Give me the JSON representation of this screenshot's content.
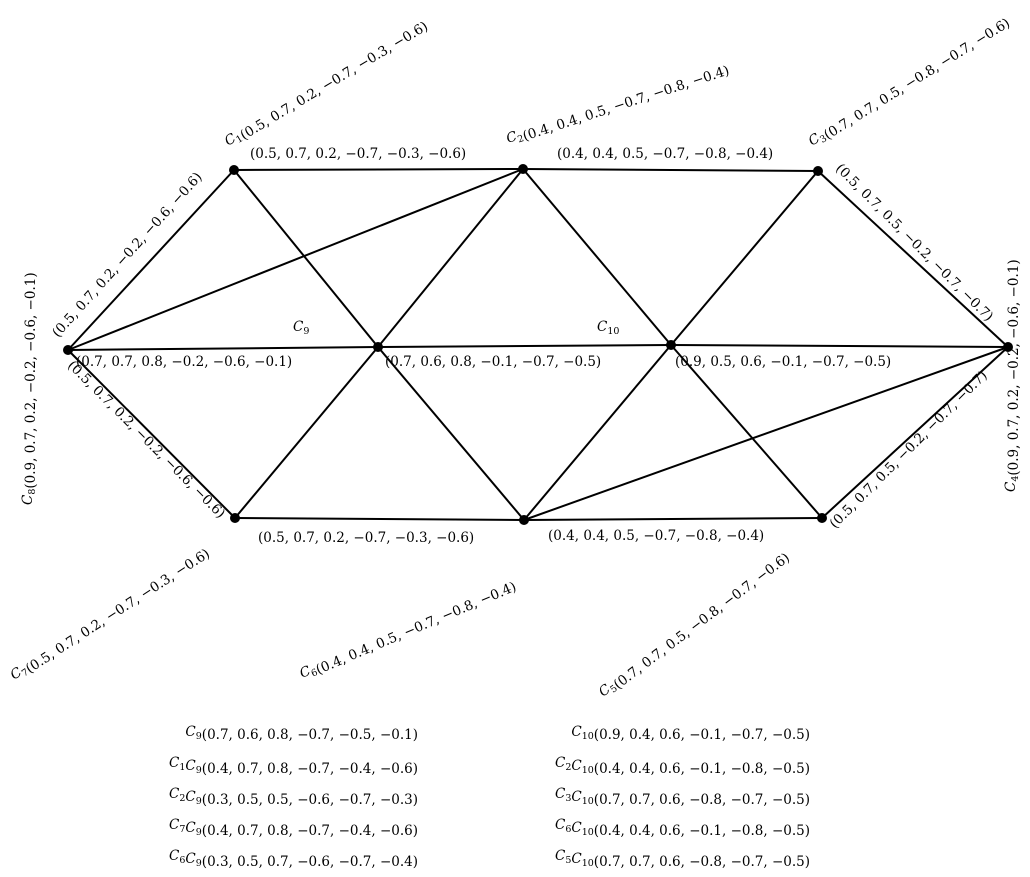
{
  "nodes": [
    {
      "id": "C1",
      "name": "C",
      "sub": "1",
      "tuple": "(0.5, 0.7, 0.2, −0.7, −0.3, −0.6)"
    },
    {
      "id": "C2",
      "name": "C",
      "sub": "2",
      "tuple": "(0.4, 0.4, 0.5, −0.7, −0.8, −0.4)"
    },
    {
      "id": "C3",
      "name": "C",
      "sub": "3",
      "tuple": "(0.7, 0.7, 0.5, −0.8, −0.7, −0.6)"
    },
    {
      "id": "C4",
      "name": "C",
      "sub": "4",
      "tuple": "(0.9, 0.7, 0.2, −0.2, −0.6, −0.1)"
    },
    {
      "id": "C5",
      "name": "C",
      "sub": "5",
      "tuple": "(0.7, 0.7, 0.5, −0.8, −0.7, −0.6)"
    },
    {
      "id": "C6",
      "name": "C",
      "sub": "6",
      "tuple": "(0.4, 0.4, 0.5, −0.7, −0.8, −0.4)"
    },
    {
      "id": "C7",
      "name": "C",
      "sub": "7",
      "tuple": "(0.5, 0.7, 0.2, −0.7, −0.3, −0.6)"
    },
    {
      "id": "C8",
      "name": "C",
      "sub": "8",
      "tuple": "(0.9, 0.7, 0.2, −0.2, −0.6, −0.1)"
    },
    {
      "id": "C9",
      "name": "C",
      "sub": "9",
      "tuple": ""
    },
    {
      "id": "C10",
      "name": "C",
      "sub": "10",
      "tuple": ""
    }
  ],
  "edges": [
    {
      "from": "C1",
      "to": "C2",
      "label": "(0.5, 0.7, 0.2, −0.7, −0.3, −0.6)"
    },
    {
      "from": "C2",
      "to": "C3",
      "label": "(0.4, 0.4, 0.5, −0.7, −0.8, −0.4)"
    },
    {
      "from": "C3",
      "to": "C4",
      "label": "(0.5, 0.7, 0.5, −0.2, −0.7, −0.7)"
    },
    {
      "from": "C4",
      "to": "C5",
      "label": "(0.5, 0.7, 0.5, −0.2, −0.7, −0.7)"
    },
    {
      "from": "C5",
      "to": "C6",
      "label": "(0.4, 0.4, 0.5, −0.7, −0.8, −0.4)"
    },
    {
      "from": "C6",
      "to": "C7",
      "label": "(0.5, 0.7, 0.2, −0.7, −0.3, −0.6)"
    },
    {
      "from": "C7",
      "to": "C8",
      "label": "(0.5, 0.7, 0.2, −0.2, −0.6, −0.6)"
    },
    {
      "from": "C8",
      "to": "C1",
      "label": "(0.5, 0.7, 0.2, −0.2, −0.6, −0.6)"
    },
    {
      "from": "C8",
      "to": "C9",
      "label": "(0.7, 0.7, 0.8, −0.2, −0.6, −0.1)"
    },
    {
      "from": "C9",
      "to": "C10",
      "label": "(0.7, 0.6, 0.8, −0.1, −0.7, −0.5)"
    },
    {
      "from": "C10",
      "to": "C4",
      "label": "(0.9, 0.5, 0.6, −0.1, −0.7, −0.5)"
    },
    {
      "from": "C8",
      "to": "C2",
      "label": ""
    },
    {
      "from": "C4",
      "to": "C6",
      "label": ""
    },
    {
      "from": "C1",
      "to": "C9",
      "label": ""
    },
    {
      "from": "C9",
      "to": "C6",
      "label": ""
    },
    {
      "from": "C2",
      "to": "C9",
      "label": ""
    },
    {
      "from": "C9",
      "to": "C7",
      "label": ""
    },
    {
      "from": "C2",
      "to": "C10",
      "label": ""
    },
    {
      "from": "C10",
      "to": "C5",
      "label": ""
    },
    {
      "from": "C3",
      "to": "C10",
      "label": ""
    },
    {
      "from": "C10",
      "to": "C6",
      "label": ""
    }
  ],
  "table": {
    "left": [
      {
        "name": "C",
        "sub": "9",
        "value": "(0.7, 0.6, 0.8, −0.7, −0.5, −0.1)"
      },
      {
        "name": "C",
        "sub": "1",
        "name2": "C",
        "sub2": "9",
        "value": "(0.4, 0.7, 0.8, −0.7, −0.4, −0.6)"
      },
      {
        "name": "C",
        "sub": "2",
        "name2": "C",
        "sub2": "9",
        "value": "(0.3, 0.5, 0.5, −0.6, −0.7, −0.3)"
      },
      {
        "name": "C",
        "sub": "7",
        "name2": "C",
        "sub2": "9",
        "value": "(0.4, 0.7, 0.8, −0.7, −0.4, −0.6)"
      },
      {
        "name": "C",
        "sub": "6",
        "name2": "C",
        "sub2": "9",
        "value": "(0.3, 0.5, 0.7, −0.6, −0.7, −0.4)"
      }
    ],
    "right": [
      {
        "name": "C",
        "sub": "10",
        "value": "(0.9, 0.4, 0.6, −0.1, −0.7, −0.5)"
      },
      {
        "name": "C",
        "sub": "2",
        "name2": "C",
        "sub2": "10",
        "value": "(0.4, 0.4, 0.6, −0.1, −0.8, −0.5)"
      },
      {
        "name": "C",
        "sub": "3",
        "name2": "C",
        "sub2": "10",
        "value": "(0.7, 0.7, 0.6, −0.8, −0.7, −0.5)"
      },
      {
        "name": "C",
        "sub": "6",
        "name2": "C",
        "sub2": "10",
        "value": "(0.4, 0.4, 0.6, −0.1, −0.8, −0.5)"
      },
      {
        "name": "C",
        "sub": "5",
        "name2": "C",
        "sub2": "10",
        "value": "(0.7, 0.7, 0.6, −0.8, −0.7, −0.5)"
      }
    ]
  }
}
